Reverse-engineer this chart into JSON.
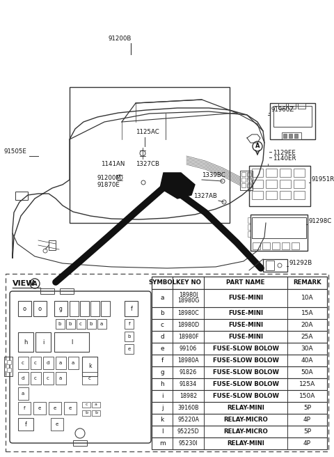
{
  "bg_color": "#ffffff",
  "fig_width": 4.8,
  "fig_height": 6.56,
  "dpi": 100,
  "table_rows": [
    {
      "symbol": "a",
      "key_no": "18980J\n18980G",
      "part_name": "FUSE-MINI",
      "remark": "10A",
      "tall": true
    },
    {
      "symbol": "b",
      "key_no": "18980C",
      "part_name": "FUSE-MINI",
      "remark": "15A",
      "tall": false
    },
    {
      "symbol": "c",
      "key_no": "18980D",
      "part_name": "FUSE-MINI",
      "remark": "20A",
      "tall": false
    },
    {
      "symbol": "d",
      "key_no": "18980F",
      "part_name": "FUSE-MINI",
      "remark": "25A",
      "tall": false
    },
    {
      "symbol": "e",
      "key_no": "99106",
      "part_name": "FUSE-SLOW BOLOW",
      "remark": "30A",
      "tall": false
    },
    {
      "symbol": "f",
      "key_no": "18980A",
      "part_name": "FUSE-SLOW BOLOW",
      "remark": "40A",
      "tall": false
    },
    {
      "symbol": "g",
      "key_no": "91826",
      "part_name": "FUSE-SLOW BOLOW",
      "remark": "50A",
      "tall": false
    },
    {
      "symbol": "h",
      "key_no": "91834",
      "part_name": "FUSE-SLOW BOLOW",
      "remark": "125A",
      "tall": false
    },
    {
      "symbol": "i",
      "key_no": "18982",
      "part_name": "FUSE-SLOW BOLOW",
      "remark": "150A",
      "tall": false
    },
    {
      "symbol": "j",
      "key_no": "39160B",
      "part_name": "RELAY-MINI",
      "remark": "5P",
      "tall": false
    },
    {
      "symbol": "k",
      "key_no": "95220A",
      "part_name": "RELAY-MICRO",
      "remark": "4P",
      "tall": false
    },
    {
      "symbol": "l",
      "key_no": "95225D",
      "part_name": "RELAY-MICRO",
      "remark": "5P",
      "tall": false
    },
    {
      "symbol": "m",
      "key_no": "95230I",
      "part_name": "RELAY-MINI",
      "remark": "4P",
      "tall": false
    }
  ]
}
